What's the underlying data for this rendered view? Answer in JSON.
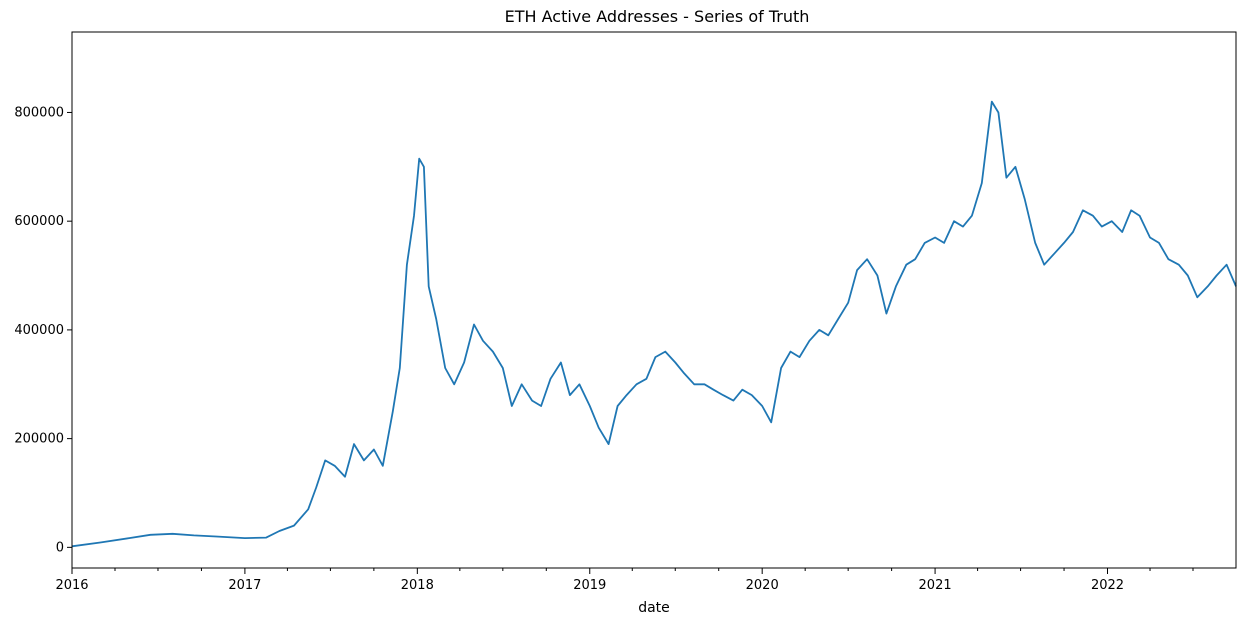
{
  "chart_data": {
    "type": "line",
    "title": "ETH Active Addresses - Series of Truth",
    "xlabel": "date",
    "ylabel": "",
    "xlim": [
      "2016-01-01",
      "2022-09-30"
    ],
    "ylim": [
      -38000,
      948000
    ],
    "x_ticks": [
      "2016",
      "2017",
      "2018",
      "2019",
      "2020",
      "2021",
      "2022"
    ],
    "y_ticks": [
      0,
      200000,
      400000,
      600000,
      800000
    ],
    "grid": false,
    "legend": "none",
    "line_color": "#1f77b4",
    "series": [
      {
        "x": [
          "2016-01-01",
          "2016-03-01",
          "2016-05-01",
          "2016-06-15",
          "2016-08-01",
          "2016-09-15",
          "2016-11-01",
          "2017-01-01",
          "2017-02-15",
          "2017-03-15",
          "2017-04-15",
          "2017-05-15",
          "2017-06-01",
          "2017-06-20",
          "2017-07-10",
          "2017-08-01",
          "2017-08-20",
          "2017-09-10",
          "2017-10-01",
          "2017-10-20",
          "2017-11-10",
          "2017-11-25",
          "2017-12-10",
          "2017-12-25",
          "2018-01-05",
          "2018-01-15",
          "2018-01-25",
          "2018-02-10",
          "2018-03-01",
          "2018-03-20",
          "2018-04-10",
          "2018-05-01",
          "2018-05-20",
          "2018-06-10",
          "2018-07-01",
          "2018-07-20",
          "2018-08-10",
          "2018-09-01",
          "2018-09-20",
          "2018-10-10",
          "2018-11-01",
          "2018-11-20",
          "2018-12-10",
          "2019-01-01",
          "2019-01-20",
          "2019-02-10",
          "2019-03-01",
          "2019-03-20",
          "2019-04-10",
          "2019-05-01",
          "2019-05-20",
          "2019-06-10",
          "2019-07-01",
          "2019-07-20",
          "2019-08-10",
          "2019-09-01",
          "2019-09-20",
          "2019-10-10",
          "2019-11-01",
          "2019-11-20",
          "2019-12-10",
          "2020-01-01",
          "2020-01-20",
          "2020-02-10",
          "2020-03-01",
          "2020-03-20",
          "2020-04-10",
          "2020-05-01",
          "2020-05-20",
          "2020-06-10",
          "2020-07-01",
          "2020-07-20",
          "2020-08-10",
          "2020-09-01",
          "2020-09-20",
          "2020-10-10",
          "2020-11-01",
          "2020-11-20",
          "2020-12-10",
          "2021-01-01",
          "2021-01-20",
          "2021-02-10",
          "2021-03-01",
          "2021-03-20",
          "2021-04-10",
          "2021-05-01",
          "2021-05-15",
          "2021-06-01",
          "2021-06-20",
          "2021-07-10",
          "2021-08-01",
          "2021-08-20",
          "2021-09-10",
          "2021-10-01",
          "2021-10-20",
          "2021-11-10",
          "2021-12-01",
          "2021-12-20",
          "2022-01-10",
          "2022-02-01",
          "2022-02-20",
          "2022-03-10",
          "2022-04-01",
          "2022-04-20",
          "2022-05-10",
          "2022-06-01",
          "2022-06-20",
          "2022-07-10",
          "2022-08-01",
          "2022-08-20",
          "2022-09-10",
          "2022-09-30"
        ],
        "values": [
          2000,
          9000,
          17000,
          23000,
          25000,
          22000,
          20000,
          17000,
          18000,
          30000,
          40000,
          70000,
          110000,
          160000,
          150000,
          130000,
          190000,
          160000,
          180000,
          150000,
          250000,
          330000,
          520000,
          610000,
          715000,
          700000,
          480000,
          420000,
          330000,
          300000,
          340000,
          410000,
          380000,
          360000,
          330000,
          260000,
          300000,
          270000,
          260000,
          310000,
          340000,
          280000,
          300000,
          260000,
          220000,
          190000,
          260000,
          280000,
          300000,
          310000,
          350000,
          360000,
          340000,
          320000,
          300000,
          300000,
          290000,
          280000,
          270000,
          290000,
          280000,
          260000,
          230000,
          330000,
          360000,
          350000,
          380000,
          400000,
          390000,
          420000,
          450000,
          510000,
          530000,
          500000,
          430000,
          480000,
          520000,
          530000,
          560000,
          570000,
          560000,
          600000,
          590000,
          610000,
          670000,
          820000,
          800000,
          680000,
          700000,
          640000,
          560000,
          520000,
          540000,
          560000,
          580000,
          620000,
          610000,
          590000,
          600000,
          580000,
          620000,
          610000,
          570000,
          560000,
          530000,
          520000,
          500000,
          460000,
          480000,
          500000,
          520000,
          480000
        ]
      }
    ]
  }
}
